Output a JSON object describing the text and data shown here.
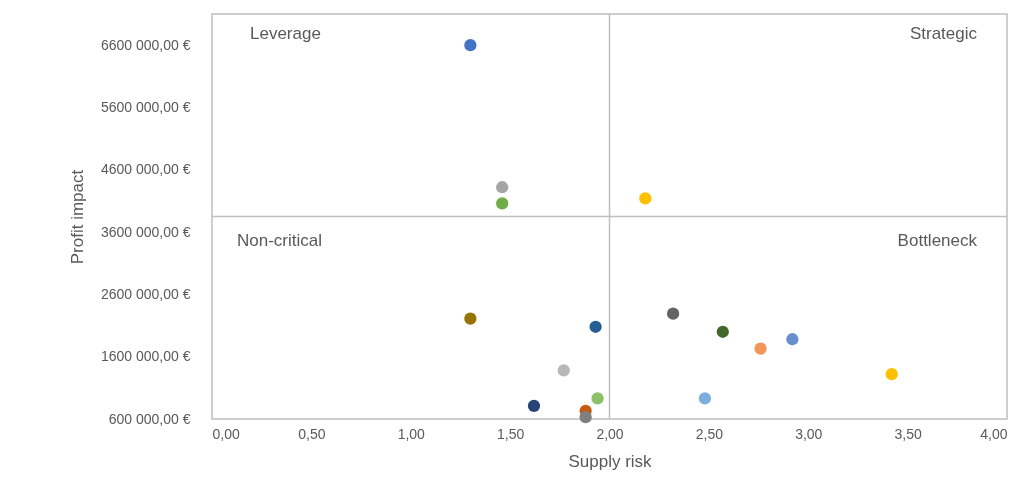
{
  "chart_data": {
    "type": "scatter",
    "xlabel": "Supply risk",
    "ylabel": "Profit impact",
    "x": [
      1.3,
      1.46,
      1.46,
      2.18,
      1.3,
      1.93,
      1.77,
      1.62,
      1.88,
      1.88,
      1.94,
      2.32,
      2.57,
      2.48,
      2.76,
      2.92,
      3.42
    ],
    "values": [
      6600000,
      4320000,
      4060000,
      4140000,
      2210000,
      2080000,
      1380000,
      810000,
      730000,
      630000,
      930000,
      2290000,
      2000000,
      930000,
      1730000,
      1880000,
      1320000
    ],
    "colors": [
      "#4472c4",
      "#a5a5a5",
      "#70ad47",
      "#ffc000",
      "#997300",
      "#255e91",
      "#b7b7b7",
      "#264478",
      "#c55a11",
      "#7f7f7f",
      "#8cc168",
      "#636363",
      "#43682b",
      "#7cafdd",
      "#f1975a",
      "#698ed0",
      "#ffc000"
    ],
    "xlim": [
      0,
      4
    ],
    "ylim": [
      600000,
      7100000
    ],
    "xticks": [
      {
        "value": 0,
        "label": "0,00"
      },
      {
        "value": 0.5,
        "label": "0,50"
      },
      {
        "value": 1,
        "label": "1,00"
      },
      {
        "value": 1.5,
        "label": "1,50"
      },
      {
        "value": 2,
        "label": "2,00"
      },
      {
        "value": 2.5,
        "label": "2,50"
      },
      {
        "value": 3,
        "label": "3,00"
      },
      {
        "value": 3.5,
        "label": "3,50"
      },
      {
        "value": 4,
        "label": "4,00"
      }
    ],
    "yticks": [
      {
        "value": 600000,
        "label": "600 000,00 €"
      },
      {
        "value": 1600000,
        "label": "1600 000,00 €"
      },
      {
        "value": 2600000,
        "label": "2600 000,00 €"
      },
      {
        "value": 3600000,
        "label": "3600 000,00 €"
      },
      {
        "value": 4600000,
        "label": "4600 000,00 €"
      },
      {
        "value": 5600000,
        "label": "5600 000,00 €"
      },
      {
        "value": 6600000,
        "label": "6600 000,00 €"
      }
    ],
    "ref_lines": [
      {
        "axis": "x",
        "value": 2,
        "color": "#bfbfbf"
      },
      {
        "axis": "y",
        "value": 3850000,
        "color": "#bfbfbf"
      }
    ],
    "annotations": [
      "Leverage",
      "Strategic",
      "Non-critical",
      "Bottleneck"
    ],
    "grid": false,
    "legend": false
  }
}
